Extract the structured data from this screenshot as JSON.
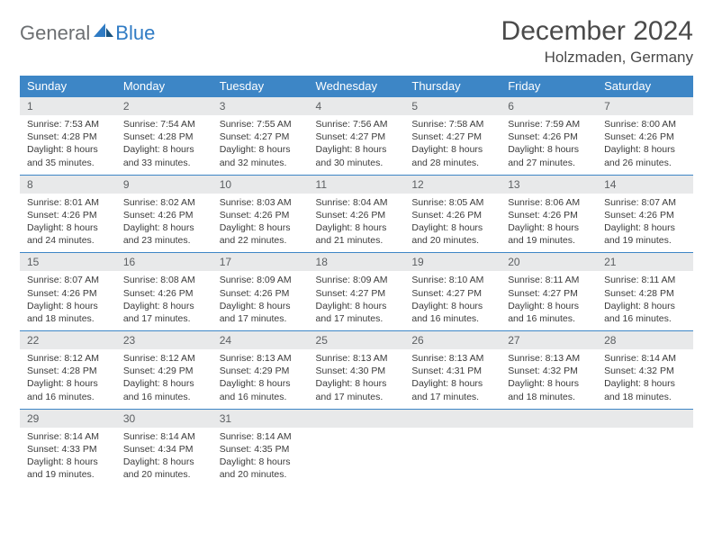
{
  "brand": {
    "part1": "General",
    "part2": "Blue"
  },
  "title": "December 2024",
  "location": "Holzmaden, Germany",
  "colors": {
    "header_bg": "#3d86c6",
    "header_fg": "#ffffff",
    "daynum_bg": "#e8e9ea",
    "row_divider": "#3d86c6",
    "brand_gray": "#6c6f72",
    "brand_blue": "#2f7bc4",
    "text": "#3b3b3b"
  },
  "weekdays": [
    "Sunday",
    "Monday",
    "Tuesday",
    "Wednesday",
    "Thursday",
    "Friday",
    "Saturday"
  ],
  "weeks": [
    [
      {
        "n": "1",
        "sr": "7:53 AM",
        "ss": "4:28 PM",
        "dl": "8 hours and 35 minutes."
      },
      {
        "n": "2",
        "sr": "7:54 AM",
        "ss": "4:28 PM",
        "dl": "8 hours and 33 minutes."
      },
      {
        "n": "3",
        "sr": "7:55 AM",
        "ss": "4:27 PM",
        "dl": "8 hours and 32 minutes."
      },
      {
        "n": "4",
        "sr": "7:56 AM",
        "ss": "4:27 PM",
        "dl": "8 hours and 30 minutes."
      },
      {
        "n": "5",
        "sr": "7:58 AM",
        "ss": "4:27 PM",
        "dl": "8 hours and 28 minutes."
      },
      {
        "n": "6",
        "sr": "7:59 AM",
        "ss": "4:26 PM",
        "dl": "8 hours and 27 minutes."
      },
      {
        "n": "7",
        "sr": "8:00 AM",
        "ss": "4:26 PM",
        "dl": "8 hours and 26 minutes."
      }
    ],
    [
      {
        "n": "8",
        "sr": "8:01 AM",
        "ss": "4:26 PM",
        "dl": "8 hours and 24 minutes."
      },
      {
        "n": "9",
        "sr": "8:02 AM",
        "ss": "4:26 PM",
        "dl": "8 hours and 23 minutes."
      },
      {
        "n": "10",
        "sr": "8:03 AM",
        "ss": "4:26 PM",
        "dl": "8 hours and 22 minutes."
      },
      {
        "n": "11",
        "sr": "8:04 AM",
        "ss": "4:26 PM",
        "dl": "8 hours and 21 minutes."
      },
      {
        "n": "12",
        "sr": "8:05 AM",
        "ss": "4:26 PM",
        "dl": "8 hours and 20 minutes."
      },
      {
        "n": "13",
        "sr": "8:06 AM",
        "ss": "4:26 PM",
        "dl": "8 hours and 19 minutes."
      },
      {
        "n": "14",
        "sr": "8:07 AM",
        "ss": "4:26 PM",
        "dl": "8 hours and 19 minutes."
      }
    ],
    [
      {
        "n": "15",
        "sr": "8:07 AM",
        "ss": "4:26 PM",
        "dl": "8 hours and 18 minutes."
      },
      {
        "n": "16",
        "sr": "8:08 AM",
        "ss": "4:26 PM",
        "dl": "8 hours and 17 minutes."
      },
      {
        "n": "17",
        "sr": "8:09 AM",
        "ss": "4:26 PM",
        "dl": "8 hours and 17 minutes."
      },
      {
        "n": "18",
        "sr": "8:09 AM",
        "ss": "4:27 PM",
        "dl": "8 hours and 17 minutes."
      },
      {
        "n": "19",
        "sr": "8:10 AM",
        "ss": "4:27 PM",
        "dl": "8 hours and 16 minutes."
      },
      {
        "n": "20",
        "sr": "8:11 AM",
        "ss": "4:27 PM",
        "dl": "8 hours and 16 minutes."
      },
      {
        "n": "21",
        "sr": "8:11 AM",
        "ss": "4:28 PM",
        "dl": "8 hours and 16 minutes."
      }
    ],
    [
      {
        "n": "22",
        "sr": "8:12 AM",
        "ss": "4:28 PM",
        "dl": "8 hours and 16 minutes."
      },
      {
        "n": "23",
        "sr": "8:12 AM",
        "ss": "4:29 PM",
        "dl": "8 hours and 16 minutes."
      },
      {
        "n": "24",
        "sr": "8:13 AM",
        "ss": "4:29 PM",
        "dl": "8 hours and 16 minutes."
      },
      {
        "n": "25",
        "sr": "8:13 AM",
        "ss": "4:30 PM",
        "dl": "8 hours and 17 minutes."
      },
      {
        "n": "26",
        "sr": "8:13 AM",
        "ss": "4:31 PM",
        "dl": "8 hours and 17 minutes."
      },
      {
        "n": "27",
        "sr": "8:13 AM",
        "ss": "4:32 PM",
        "dl": "8 hours and 18 minutes."
      },
      {
        "n": "28",
        "sr": "8:14 AM",
        "ss": "4:32 PM",
        "dl": "8 hours and 18 minutes."
      }
    ],
    [
      {
        "n": "29",
        "sr": "8:14 AM",
        "ss": "4:33 PM",
        "dl": "8 hours and 19 minutes."
      },
      {
        "n": "30",
        "sr": "8:14 AM",
        "ss": "4:34 PM",
        "dl": "8 hours and 20 minutes."
      },
      {
        "n": "31",
        "sr": "8:14 AM",
        "ss": "4:35 PM",
        "dl": "8 hours and 20 minutes."
      },
      null,
      null,
      null,
      null
    ]
  ],
  "labels": {
    "sunrise": "Sunrise: ",
    "sunset": "Sunset: ",
    "daylight": "Daylight: "
  }
}
